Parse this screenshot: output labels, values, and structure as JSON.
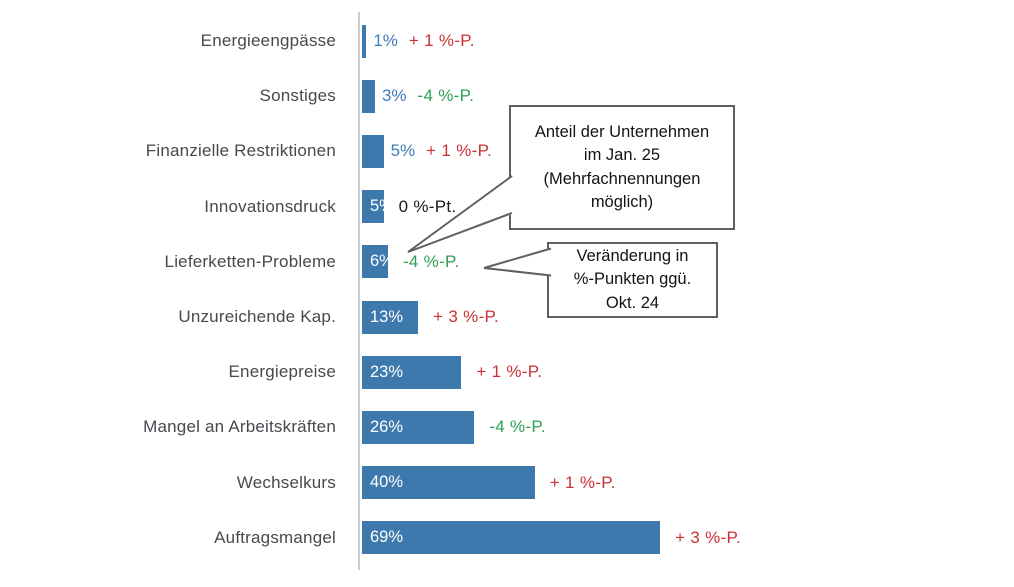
{
  "colors": {
    "bar": "#3d79ad",
    "value_text": "#3e7cb8",
    "increase": "#c93234",
    "decrease": "#2fa052",
    "neutral": "#1a1a1a",
    "category_label": "#46494e",
    "axis_line": "#c9ced3",
    "callout_border": "#5d5f62"
  },
  "callouts": {
    "share": {
      "text": "Anteil der Unternehmen\nim Jan. 25\n(Mehrfachnennungen\nmöglich)"
    },
    "change": {
      "text": "Veränderung in\n%-Punkten ggü.\nOkt. 24"
    }
  },
  "chart_data": {
    "type": "bar",
    "orientation": "horizontal",
    "title": "",
    "xlabel": "",
    "ylabel": "",
    "xlim": [
      0,
      100
    ],
    "grid": false,
    "legend_position": "none",
    "categories": [
      "Energieengpässe",
      "Sonstiges",
      "Finanzielle Restriktionen",
      "Innovationsdruck",
      "Lieferketten-Probleme",
      "Unzureichende Kap.",
      "Energiepreise",
      "Mangel an Arbeitskräften",
      "Wechselkurs",
      "Auftragsmangel"
    ],
    "series": [
      {
        "name": "Anteil der Unternehmen im Jan. 25 (Mehrfachnennungen möglich)",
        "unit": "%",
        "values": [
          1,
          3,
          5,
          5,
          6,
          13,
          23,
          26,
          40,
          69
        ]
      },
      {
        "name": "Veränderung in %-Punkten ggü. Okt. 24",
        "unit": "%-Punkte",
        "values": [
          1,
          -4,
          1,
          0,
          -4,
          3,
          1,
          -4,
          1,
          3
        ]
      }
    ],
    "rows": [
      {
        "label": "Energieengpässe",
        "value": 1,
        "value_label": "1%",
        "value_label_position": "outside",
        "change_label": "+ 1 %-P.",
        "change_direction": "up"
      },
      {
        "label": "Sonstiges",
        "value": 3,
        "value_label": "3%",
        "value_label_position": "outside",
        "change_label": "-4 %-P.",
        "change_direction": "down"
      },
      {
        "label": "Finanzielle Restriktionen",
        "value": 5,
        "value_label": "5%",
        "value_label_position": "outside",
        "change_label": "+ 1 %-P.",
        "change_direction": "up"
      },
      {
        "label": "Innovationsdruck",
        "value": 5,
        "value_label": "5%",
        "value_label_position": "inside",
        "change_label": "0 %-Pt.",
        "change_direction": "zero"
      },
      {
        "label": "Lieferketten-Probleme",
        "value": 6,
        "value_label": "6%",
        "value_label_position": "inside",
        "change_label": "-4 %-P.",
        "change_direction": "down"
      },
      {
        "label": "Unzureichende Kap.",
        "value": 13,
        "value_label": "13%",
        "value_label_position": "inside",
        "change_label": "+ 3 %-P.",
        "change_direction": "up"
      },
      {
        "label": "Energiepreise",
        "value": 23,
        "value_label": "23%",
        "value_label_position": "inside",
        "change_label": "+ 1 %-P.",
        "change_direction": "up"
      },
      {
        "label": "Mangel an Arbeitskräften",
        "value": 26,
        "value_label": "26%",
        "value_label_position": "inside",
        "change_label": "-4 %-P.",
        "change_direction": "down"
      },
      {
        "label": "Wechselkurs",
        "value": 40,
        "value_label": "40%",
        "value_label_position": "inside",
        "change_label": "+ 1 %-P.",
        "change_direction": "up"
      },
      {
        "label": "Auftragsmangel",
        "value": 69,
        "value_label": "69%",
        "value_label_position": "inside",
        "change_label": "+ 3 %-P.",
        "change_direction": "up"
      }
    ]
  }
}
